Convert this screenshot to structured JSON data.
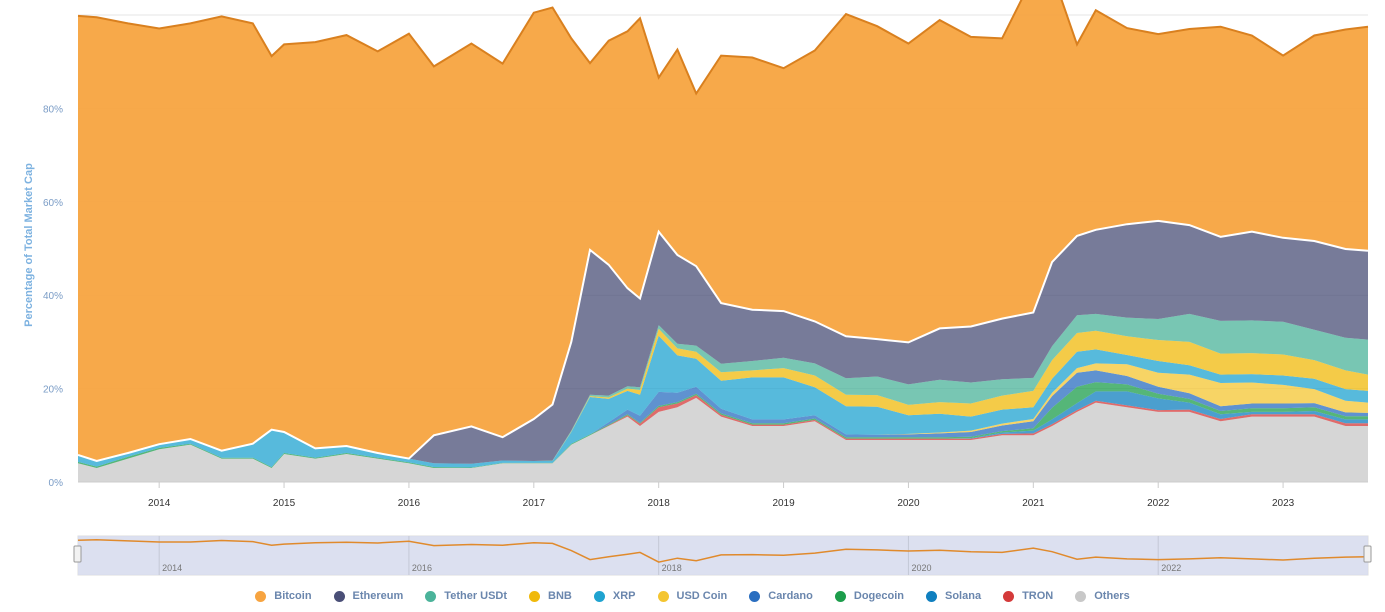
{
  "chart_data": {
    "type": "area",
    "stacked": true,
    "ylabel": "Percentage of Total Market Cap",
    "ylim": [
      0,
      100
    ],
    "yticks": [
      "0%",
      "20%",
      "40%",
      "60%",
      "80%"
    ],
    "xticks": [
      "2014",
      "2015",
      "2016",
      "2017",
      "2018",
      "2019",
      "2020",
      "2021",
      "2022",
      "2023"
    ],
    "navigator_ticks": [
      "2014",
      "2016",
      "2018",
      "2020",
      "2022"
    ],
    "x": [
      2013.35,
      2013.5,
      2013.75,
      2014.0,
      2014.25,
      2014.5,
      2014.75,
      2014.9,
      2015.0,
      2015.25,
      2015.5,
      2015.75,
      2016.0,
      2016.2,
      2016.5,
      2016.75,
      2017.0,
      2017.15,
      2017.3,
      2017.45,
      2017.6,
      2017.75,
      2017.85,
      2018.0,
      2018.15,
      2018.3,
      2018.5,
      2018.75,
      2019.0,
      2019.25,
      2019.5,
      2019.75,
      2020.0,
      2020.25,
      2020.5,
      2020.75,
      2021.0,
      2021.15,
      2021.35,
      2021.5,
      2021.75,
      2022.0,
      2022.25,
      2022.5,
      2022.75,
      2023.0,
      2023.25,
      2023.5,
      2023.68
    ],
    "series": [
      {
        "name": "Bitcoin",
        "color": "#f7a440",
        "values": [
          94,
          95,
          92,
          89,
          89,
          93,
          90,
          80,
          83,
          87,
          88,
          86,
          91,
          79,
          82,
          80,
          87,
          85,
          65,
          40,
          48,
          55,
          60,
          33,
          44,
          37,
          53,
          54,
          52,
          58,
          69,
          67,
          64,
          66,
          62,
          60,
          72,
          62,
          41,
          47,
          42,
          40,
          42,
          45,
          42,
          39,
          44,
          47,
          48
        ]
      },
      {
        "name": "Ethereum",
        "color": "#4a4f77",
        "values": [
          0,
          0,
          0,
          0,
          0,
          0,
          0,
          0,
          0,
          0,
          0,
          0,
          0,
          6,
          8,
          5,
          9,
          12,
          19,
          31,
          28,
          21,
          19,
          20,
          19,
          17,
          13,
          11,
          10,
          9,
          9,
          8,
          9,
          11,
          12,
          13,
          14,
          18,
          17,
          18,
          20,
          21,
          19,
          18,
          19,
          18,
          19,
          19,
          19
        ]
      },
      {
        "name": "Tether USDt",
        "color": "#4bb39a",
        "values": [
          0,
          0,
          0,
          0,
          0,
          0,
          0,
          0,
          0,
          0,
          0,
          0,
          0,
          0,
          0,
          0,
          0,
          0.1,
          0.2,
          0.3,
          0.4,
          0.5,
          0.6,
          0.8,
          1.0,
          1.3,
          1.8,
          2.0,
          2.2,
          2.6,
          3.5,
          4.0,
          4.4,
          4.8,
          4.5,
          3.5,
          2.8,
          3.0,
          3.8,
          3.6,
          4.0,
          4.5,
          6.0,
          7.0,
          7.0,
          7.0,
          6.5,
          7.0,
          7.5
        ]
      },
      {
        "name": "BNB",
        "color": "#f0b90b",
        "values": [
          0,
          0,
          0,
          0,
          0,
          0,
          0,
          0,
          0,
          0,
          0,
          0,
          0,
          0,
          0,
          0,
          0,
          0,
          0.1,
          0.2,
          0.3,
          0.5,
          1.0,
          1.5,
          1.5,
          1.5,
          1.8,
          1.5,
          2.0,
          2.5,
          2.5,
          2.5,
          2.2,
          2.5,
          2.8,
          3.0,
          3.5,
          4.0,
          4.0,
          4.0,
          4.0,
          4.5,
          5.0,
          4.5,
          4.5,
          4.5,
          4.0,
          4.0,
          3.5
        ]
      },
      {
        "name": "XRP",
        "color": "#1fa3d0",
        "values": [
          1.5,
          1.2,
          0.8,
          0.8,
          1.0,
          1.5,
          3.0,
          8.0,
          4.5,
          2.0,
          1.5,
          1.0,
          0.8,
          0.8,
          0.8,
          0.5,
          0.4,
          0.4,
          2.5,
          8.0,
          5.0,
          4.0,
          4.5,
          12.0,
          8.0,
          6.0,
          6.0,
          9.0,
          9.0,
          6.0,
          6.0,
          6.0,
          4.0,
          4.0,
          3.0,
          3.0,
          2.5,
          3.0,
          3.5,
          3.0,
          2.0,
          2.5,
          2.0,
          1.8,
          1.8,
          2.0,
          2.2,
          2.5,
          2.5
        ]
      },
      {
        "name": "USD Coin",
        "color": "#f4c531",
        "values": [
          0,
          0,
          0,
          0,
          0,
          0,
          0,
          0,
          0,
          0,
          0,
          0,
          0,
          0,
          0,
          0,
          0,
          0,
          0,
          0,
          0,
          0,
          0,
          0,
          0,
          0,
          0,
          0,
          0,
          0,
          0,
          0,
          0.1,
          0.2,
          0.3,
          0.4,
          0.5,
          0.7,
          1.0,
          1.5,
          2.5,
          3.0,
          4.0,
          5.0,
          4.5,
          4.0,
          3.0,
          2.5,
          2.2
        ]
      },
      {
        "name": "Cardano",
        "color": "#2a6ec0",
        "values": [
          0,
          0,
          0,
          0,
          0,
          0,
          0,
          0,
          0,
          0,
          0,
          0,
          0,
          0,
          0,
          0,
          0,
          0,
          0,
          0,
          0.5,
          1.0,
          1.5,
          3.0,
          2.0,
          1.5,
          1.0,
          0.8,
          0.8,
          0.7,
          0.6,
          0.5,
          0.6,
          0.8,
          1.0,
          1.2,
          1.5,
          2.5,
          3.0,
          2.5,
          1.8,
          1.5,
          1.2,
          1.0,
          1.0,
          1.0,
          0.9,
          0.8,
          0.7
        ]
      },
      {
        "name": "Dogecoin",
        "color": "#1c9d4b",
        "values": [
          0.3,
          0.3,
          0.4,
          0.3,
          0.2,
          0.2,
          0.2,
          0.2,
          0.2,
          0.2,
          0.2,
          0.2,
          0.2,
          0.2,
          0.1,
          0.1,
          0.1,
          0.1,
          0.2,
          0.2,
          0.2,
          0.2,
          0.2,
          0.3,
          0.3,
          0.3,
          0.3,
          0.3,
          0.3,
          0.3,
          0.3,
          0.3,
          0.3,
          0.3,
          0.3,
          0.3,
          0.5,
          2.5,
          3.5,
          2.0,
          1.5,
          1.0,
          0.8,
          0.7,
          0.8,
          0.8,
          0.8,
          0.7,
          0.7
        ]
      },
      {
        "name": "Solana",
        "color": "#0f7fbf",
        "values": [
          0,
          0,
          0,
          0,
          0,
          0,
          0,
          0,
          0,
          0,
          0,
          0,
          0,
          0,
          0,
          0,
          0,
          0,
          0,
          0,
          0,
          0,
          0,
          0,
          0,
          0,
          0,
          0,
          0,
          0,
          0,
          0,
          0,
          0,
          0.1,
          0.3,
          0.6,
          1.0,
          1.5,
          2.0,
          3.0,
          2.5,
          1.5,
          1.0,
          0.5,
          0.5,
          0.7,
          0.8,
          0.8
        ]
      },
      {
        "name": "TRON",
        "color": "#d43a3a",
        "values": [
          0,
          0,
          0,
          0,
          0,
          0,
          0,
          0,
          0,
          0,
          0,
          0,
          0,
          0,
          0,
          0,
          0,
          0,
          0,
          0,
          0.1,
          0.3,
          0.5,
          1.0,
          0.8,
          0.6,
          0.4,
          0.3,
          0.3,
          0.3,
          0.3,
          0.3,
          0.3,
          0.3,
          0.3,
          0.3,
          0.4,
          0.4,
          0.4,
          0.4,
          0.4,
          0.4,
          0.5,
          0.5,
          0.5,
          0.5,
          0.5,
          0.6,
          0.6
        ]
      },
      {
        "name": "Others",
        "color": "#c8c8c8",
        "values": [
          4,
          3,
          5,
          7,
          8,
          5,
          5,
          3,
          6,
          5,
          6,
          5,
          4,
          3,
          3,
          4,
          4,
          4,
          8,
          10,
          12,
          14,
          12,
          15,
          16,
          18,
          14,
          12,
          12,
          13,
          9,
          9,
          9,
          9,
          9,
          10,
          10,
          12,
          15,
          17,
          16,
          15,
          15,
          13,
          14,
          14,
          14,
          12,
          12
        ]
      }
    ]
  }
}
